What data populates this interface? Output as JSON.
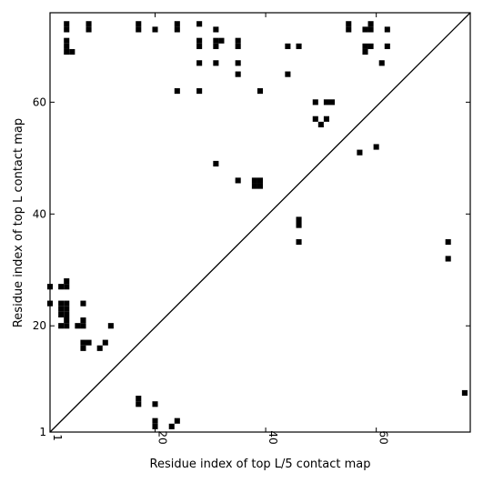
{
  "chart_data": {
    "type": "heatmap",
    "title": "",
    "xlabel": "Residue index of top L/5 contact map",
    "ylabel": "Residue index of top L contact map",
    "xlim": [
      1,
      77
    ],
    "ylim": [
      1,
      76
    ],
    "x_ticks": [
      1,
      20,
      40,
      60
    ],
    "y_ticks": [
      1,
      20,
      40,
      60
    ],
    "grid": false,
    "diagonal": true,
    "cell_color": "#000000",
    "upper_triangle_contacts": [
      [
        4,
        74
      ],
      [
        4,
        73
      ],
      [
        8,
        74
      ],
      [
        8,
        73
      ],
      [
        17,
        74
      ],
      [
        17,
        73
      ],
      [
        20,
        73
      ],
      [
        24,
        74
      ],
      [
        24,
        73
      ],
      [
        28,
        74
      ],
      [
        31,
        73
      ],
      [
        28,
        71
      ],
      [
        28,
        70
      ],
      [
        31,
        71
      ],
      [
        31,
        70
      ],
      [
        32,
        71
      ],
      [
        35,
        71
      ],
      [
        35,
        70
      ],
      [
        4,
        71
      ],
      [
        4,
        70
      ],
      [
        4,
        69
      ],
      [
        5,
        69
      ],
      [
        28,
        67
      ],
      [
        31,
        67
      ],
      [
        35,
        67
      ],
      [
        35,
        65
      ],
      [
        44,
        70
      ],
      [
        46,
        70
      ],
      [
        44,
        65
      ],
      [
        24,
        62
      ],
      [
        28,
        62
      ],
      [
        39,
        62
      ],
      [
        55,
        74
      ],
      [
        55,
        73
      ],
      [
        58,
        73
      ],
      [
        59,
        74
      ],
      [
        59,
        73
      ],
      [
        62,
        73
      ],
      [
        58,
        70
      ],
      [
        59,
        70
      ],
      [
        58,
        69
      ],
      [
        62,
        70
      ],
      [
        61,
        67
      ],
      [
        49,
        60
      ],
      [
        51,
        60
      ],
      [
        52,
        60
      ],
      [
        49,
        57
      ],
      [
        51,
        57
      ],
      [
        50,
        56
      ],
      [
        57,
        51
      ],
      [
        60,
        52
      ],
      [
        31,
        49
      ],
      [
        35,
        46
      ],
      [
        38,
        46
      ],
      [
        39,
        46
      ],
      [
        38,
        45
      ],
      [
        39,
        45
      ],
      [
        46,
        39
      ],
      [
        46,
        38
      ],
      [
        46,
        35
      ],
      [
        73,
        35
      ],
      [
        73,
        32
      ],
      [
        76,
        8
      ]
    ],
    "lower_triangle_contacts": [
      [
        1,
        27
      ],
      [
        3,
        27
      ],
      [
        4,
        27
      ],
      [
        4,
        28
      ],
      [
        1,
        24
      ],
      [
        3,
        24
      ],
      [
        4,
        24
      ],
      [
        3,
        23
      ],
      [
        4,
        23
      ],
      [
        3,
        22
      ],
      [
        4,
        22
      ],
      [
        7,
        24
      ],
      [
        4,
        21
      ],
      [
        3,
        20
      ],
      [
        4,
        20
      ],
      [
        6,
        20
      ],
      [
        7,
        20
      ],
      [
        7,
        21
      ],
      [
        12,
        20
      ],
      [
        7,
        17
      ],
      [
        8,
        17
      ],
      [
        7,
        16
      ],
      [
        10,
        16
      ],
      [
        11,
        17
      ],
      [
        17,
        7
      ],
      [
        17,
        6
      ],
      [
        20,
        6
      ],
      [
        20,
        3
      ],
      [
        20,
        2
      ],
      [
        24,
        3
      ],
      [
        23,
        2
      ]
    ]
  }
}
